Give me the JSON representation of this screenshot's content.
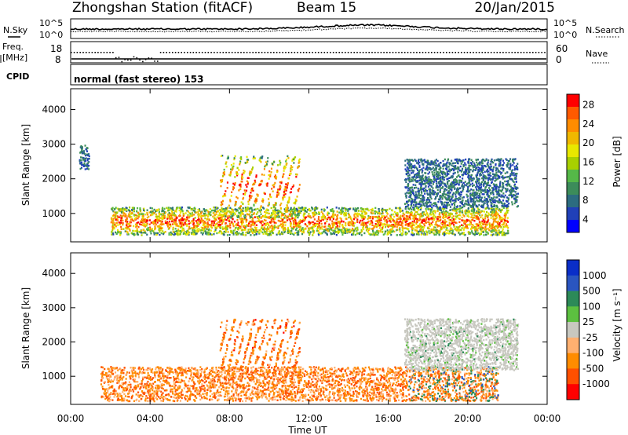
{
  "header": {
    "station": "Zhongshan Station (fitACF)",
    "beam": "Beam 15",
    "date": "20/Jan/2015"
  },
  "top_panels": {
    "nsky": {
      "label": "N.Sky",
      "ticks": [
        "10^5",
        "10^0"
      ]
    },
    "nsearch": {
      "label": "N.Search",
      "ticks": [
        "10^5",
        "10^0"
      ]
    },
    "freq": {
      "label_line1": "Freq.",
      "label_line2": "[MHz]",
      "ticks": [
        "18",
        "8"
      ]
    },
    "nave": {
      "label": "Nave",
      "ticks": [
        "60",
        "0"
      ]
    },
    "cpid": {
      "label": "CPID",
      "text": "normal (fast stereo) 153"
    }
  },
  "chart_data": [
    {
      "type": "heatmap",
      "ylabel": "Slant Range [km]",
      "ylim": [
        180,
        4600
      ],
      "yticks": [
        1000,
        2000,
        3000,
        4000
      ],
      "xlim_hours": [
        0,
        24
      ],
      "xticks": [
        "00:00",
        "04:00",
        "08:00",
        "12:00",
        "16:00",
        "20:00",
        "00:00"
      ],
      "colorbar": {
        "label": "Power [dB]",
        "ticks": [
          "28",
          "24",
          "20",
          "16",
          "12",
          "8",
          "4"
        ],
        "colors": [
          "#ff0000",
          "#ff5a00",
          "#ff8c00",
          "#f0b800",
          "#e8e800",
          "#a8d000",
          "#55b848",
          "#3c8c5a",
          "#2c6c80",
          "#2040b8",
          "#0000ff"
        ]
      },
      "regions": [
        {
          "name": "main-band",
          "start_h": 2.0,
          "end_h": 22.0,
          "range_km": [
            400,
            1200
          ],
          "level": 0.65
        },
        {
          "name": "early-patch",
          "start_h": 0.4,
          "end_h": 0.9,
          "range_km": [
            2300,
            3000
          ],
          "level": 0.3
        },
        {
          "name": "high-streaks",
          "start_h": 7.5,
          "end_h": 11.5,
          "range_km": [
            900,
            2700
          ],
          "level": 0.75
        },
        {
          "name": "evening-far",
          "start_h": 16.8,
          "end_h": 22.5,
          "range_km": [
            1200,
            2600
          ],
          "level": 0.2
        }
      ]
    },
    {
      "type": "heatmap",
      "ylabel": "Slant Range [km]",
      "ylim": [
        180,
        4600
      ],
      "yticks": [
        1000,
        2000,
        3000,
        4000
      ],
      "xlim_hours": [
        0,
        24
      ],
      "xticks": [
        "00:00",
        "04:00",
        "08:00",
        "12:00",
        "16:00",
        "20:00",
        "00:00"
      ],
      "xlabel": "Time UT",
      "colorbar": {
        "label": "Velocity [m s⁻¹]",
        "ticks": [
          "1000",
          "500",
          "100",
          "25",
          "-25",
          "-100",
          "-500",
          "-1000"
        ],
        "colors": [
          "#0a2ec8",
          "#2a55c0",
          "#2c8a58",
          "#5cc040",
          "#c8c8c0",
          "#ffb070",
          "#ff8c00",
          "#ff5000",
          "#ff0000"
        ]
      },
      "regions": [
        {
          "name": "main-band",
          "start_h": 1.5,
          "end_h": 21.5,
          "range_km": [
            300,
            1300
          ],
          "level": -0.5
        },
        {
          "name": "high-streaks",
          "start_h": 7.5,
          "end_h": 11.5,
          "range_km": [
            900,
            2700
          ],
          "level": -0.6
        },
        {
          "name": "evening-far",
          "start_h": 16.8,
          "end_h": 22.5,
          "range_km": [
            1200,
            2700
          ],
          "level": 0.0
        }
      ]
    }
  ]
}
